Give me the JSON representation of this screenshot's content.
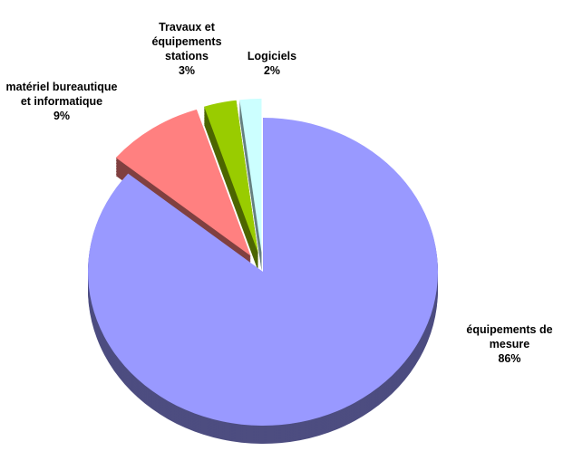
{
  "chart_data": {
    "type": "pie",
    "categories": [
      "équipements de mesure",
      "matériel bureautique et informatique",
      "Travaux et équipements stations",
      "Logiciels"
    ],
    "values": [
      86,
      9,
      3,
      2
    ],
    "value_labels": [
      "86%",
      "9%",
      "3%",
      "2%"
    ],
    "colors": [
      "#9999ff",
      "#ff8080",
      "#99cc00",
      "#ccffff"
    ]
  }
}
